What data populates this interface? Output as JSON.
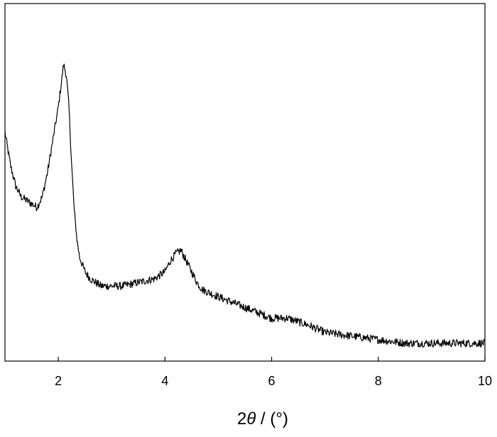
{
  "chart_data": {
    "type": "line",
    "title": "",
    "xlabel_prefix": "2",
    "xlabel_symbol": "θ",
    "xlabel_suffix": " / (°)",
    "ylabel": "",
    "xlim": [
      1,
      10
    ],
    "ylim": [
      0,
      1
    ],
    "grid": false,
    "legend": "none",
    "x_ticks": [
      2,
      4,
      6,
      8,
      10
    ],
    "x_tick_labels": [
      "2",
      "4",
      "6",
      "8",
      "10"
    ],
    "line_color": "#000000",
    "series": [
      {
        "name": "",
        "x": [
          1.0,
          1.1,
          1.2,
          1.3,
          1.4,
          1.5,
          1.6,
          1.7,
          1.8,
          1.9,
          2.0,
          2.05,
          2.1,
          2.15,
          2.2,
          2.25,
          2.3,
          2.35,
          2.4,
          2.5,
          2.6,
          2.7,
          2.8,
          3.0,
          3.2,
          3.5,
          3.8,
          4.0,
          4.1,
          4.2,
          4.3,
          4.4,
          4.5,
          4.6,
          4.7,
          5.0,
          5.5,
          6.0,
          6.3,
          6.5,
          6.7,
          7.0,
          7.5,
          8.0,
          8.5,
          9.0,
          9.5,
          10.0
        ],
        "y": [
          0.64,
          0.55,
          0.49,
          0.46,
          0.45,
          0.44,
          0.43,
          0.46,
          0.53,
          0.62,
          0.71,
          0.77,
          0.83,
          0.8,
          0.71,
          0.55,
          0.42,
          0.34,
          0.29,
          0.25,
          0.23,
          0.22,
          0.21,
          0.21,
          0.21,
          0.22,
          0.23,
          0.25,
          0.28,
          0.3,
          0.31,
          0.28,
          0.25,
          0.22,
          0.2,
          0.18,
          0.15,
          0.12,
          0.12,
          0.11,
          0.1,
          0.08,
          0.07,
          0.06,
          0.05,
          0.05,
          0.05,
          0.05
        ]
      }
    ]
  }
}
